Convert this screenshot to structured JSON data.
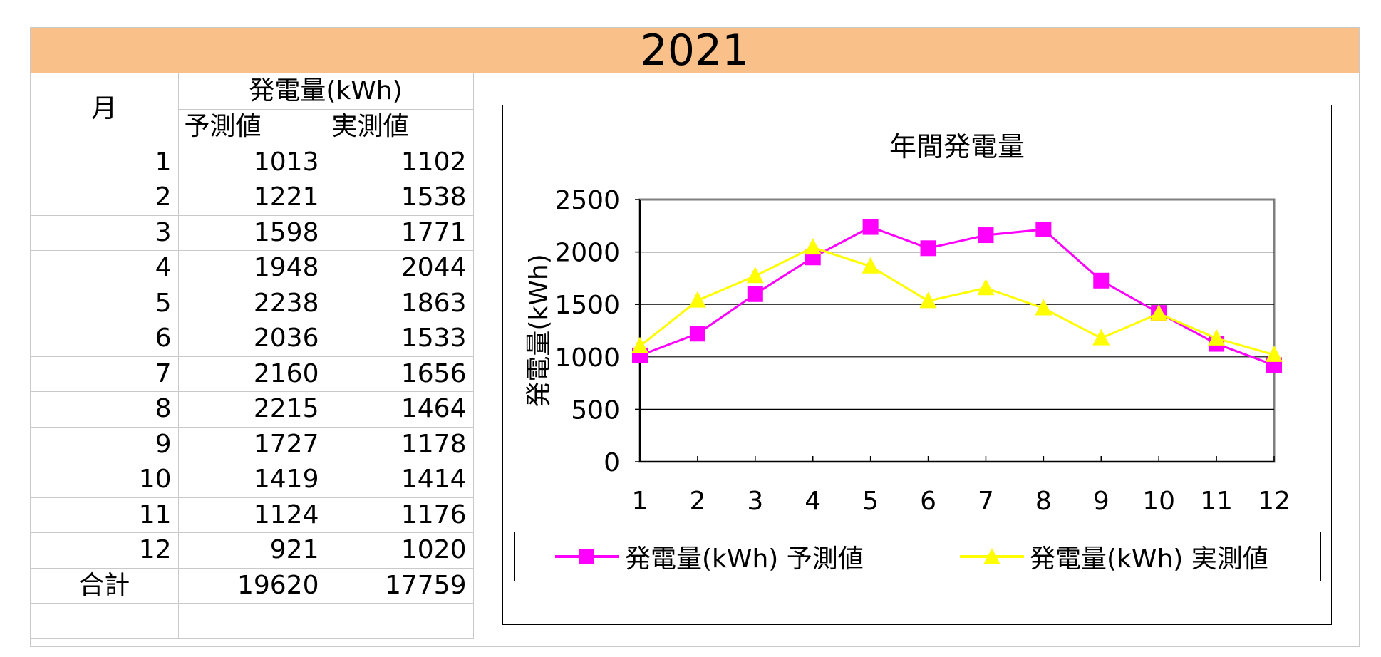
{
  "title": "2021",
  "table": {
    "month_header": "月",
    "group_header": "発電量(kWh)",
    "predicted_header": "予測値",
    "actual_header": "実測値",
    "rows": [
      {
        "month": "1",
        "predicted": "1013",
        "actual": "1102"
      },
      {
        "month": "2",
        "predicted": "1221",
        "actual": "1538"
      },
      {
        "month": "3",
        "predicted": "1598",
        "actual": "1771"
      },
      {
        "month": "4",
        "predicted": "1948",
        "actual": "2044"
      },
      {
        "month": "5",
        "predicted": "2238",
        "actual": "1863"
      },
      {
        "month": "6",
        "predicted": "2036",
        "actual": "1533"
      },
      {
        "month": "7",
        "predicted": "2160",
        "actual": "1656"
      },
      {
        "month": "8",
        "predicted": "2215",
        "actual": "1464"
      },
      {
        "month": "9",
        "predicted": "1727",
        "actual": "1178"
      },
      {
        "month": "10",
        "predicted": "1419",
        "actual": "1414"
      },
      {
        "month": "11",
        "predicted": "1124",
        "actual": "1176"
      },
      {
        "month": "12",
        "predicted": "921",
        "actual": "1020"
      }
    ],
    "total_label": "合計",
    "total_predicted": "19620",
    "total_actual": "17759"
  },
  "chart_data": {
    "type": "line",
    "title": "年間発電量",
    "xlabel": "",
    "ylabel": "発電量(kWh)",
    "categories": [
      "1",
      "2",
      "3",
      "4",
      "5",
      "6",
      "7",
      "8",
      "9",
      "10",
      "11",
      "12"
    ],
    "ylim": [
      0,
      2500
    ],
    "yticks": [
      0,
      500,
      1000,
      1500,
      2000,
      2500
    ],
    "grid": true,
    "legend_position": "bottom",
    "series": [
      {
        "name": "発電量(kWh) 予測値",
        "color": "#ff00ff",
        "marker": "square",
        "values": [
          1013,
          1221,
          1598,
          1948,
          2238,
          2036,
          2160,
          2215,
          1727,
          1419,
          1124,
          921
        ]
      },
      {
        "name": "発電量(kWh) 実測値",
        "color": "#ffff00",
        "marker": "triangle",
        "values": [
          1102,
          1538,
          1771,
          2044,
          1863,
          1533,
          1656,
          1464,
          1178,
          1414,
          1176,
          1020
        ]
      }
    ]
  }
}
